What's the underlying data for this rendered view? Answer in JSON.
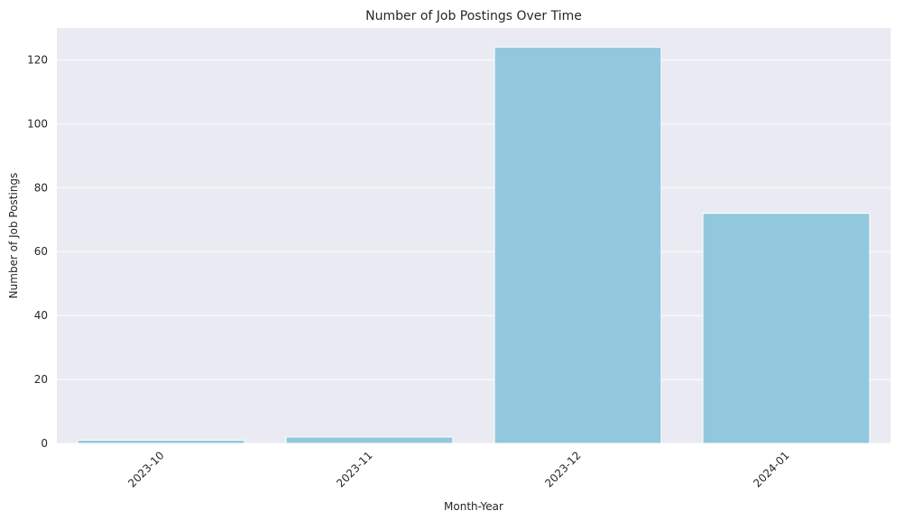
{
  "chart_data": {
    "type": "bar",
    "title": "Number of Job Postings Over Time",
    "xlabel": "Month-Year",
    "ylabel": "Number of Job Postings",
    "categories": [
      "2023-10",
      "2023-11",
      "2023-12",
      "2024-01"
    ],
    "values": [
      1,
      2,
      124,
      72
    ],
    "ylim": [
      0,
      130
    ],
    "yticks": [
      0,
      20,
      40,
      60,
      80,
      100,
      120
    ],
    "grid": true,
    "colors": {
      "bar": "#92c8de",
      "background": "#eaeaf2",
      "grid": "#ffffff"
    }
  }
}
